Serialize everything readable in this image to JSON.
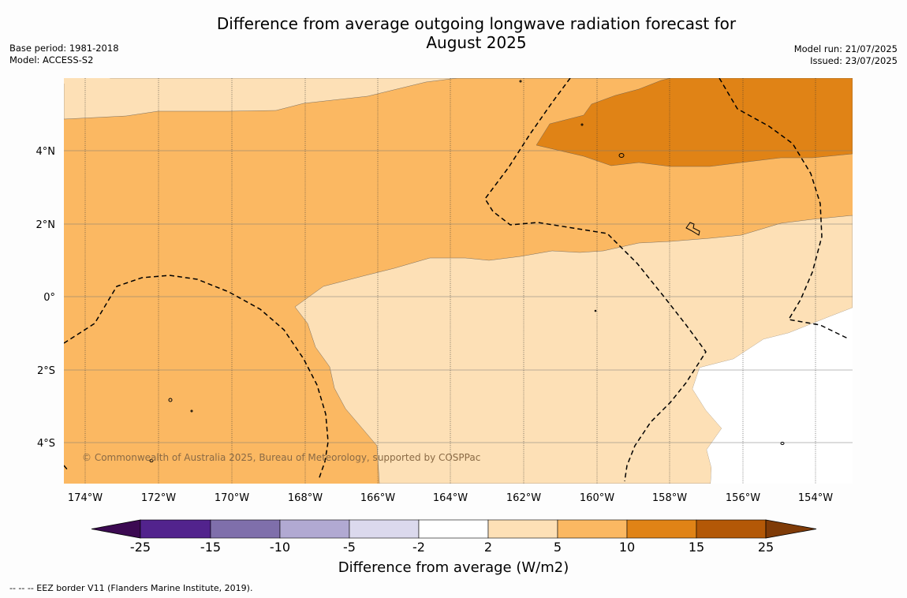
{
  "title": "Difference from average outgoing longwave radiation forecast for August 2025",
  "base_period": "Base period: 1981-2018",
  "model": "Model: ACCESS-S2",
  "model_run": "Model run: 21/07/2025",
  "issued": "Issued: 23/07/2025",
  "copyright": "© Commonwealth of Australia 2025, Bureau of Meteorology, supported by COSPPac",
  "footnote": "--  --  -- EEZ border V11 (Flanders Marine Institute, 2019).",
  "axes": {
    "lon_labels": [
      "174°W",
      "172°W",
      "170°W",
      "168°W",
      "166°W",
      "164°W",
      "162°W",
      "160°W",
      "158°W",
      "156°W",
      "154°W"
    ],
    "lat_labels": [
      "4°N",
      "2°N",
      "0°",
      "2°S",
      "4°S"
    ]
  },
  "colorbar": {
    "title": "Difference from average (W/m2)",
    "tick_labels": [
      "-25",
      "-15",
      "-10",
      "-5",
      "-2",
      "2",
      "5",
      "10",
      "15",
      "25"
    ],
    "colors": [
      "#3c0a52",
      "#52238d",
      "#7f6fab",
      "#b1a9d2",
      "#dbd9ed",
      "#ffffff",
      "#fde0b6",
      "#fbb862",
      "#e08316",
      "#b35807",
      "#7f3b08"
    ]
  },
  "map_colors": {
    "light": "#fde0b6",
    "medium": "#fbb862",
    "dark": "#e08316",
    "white": "#ffffff"
  }
}
